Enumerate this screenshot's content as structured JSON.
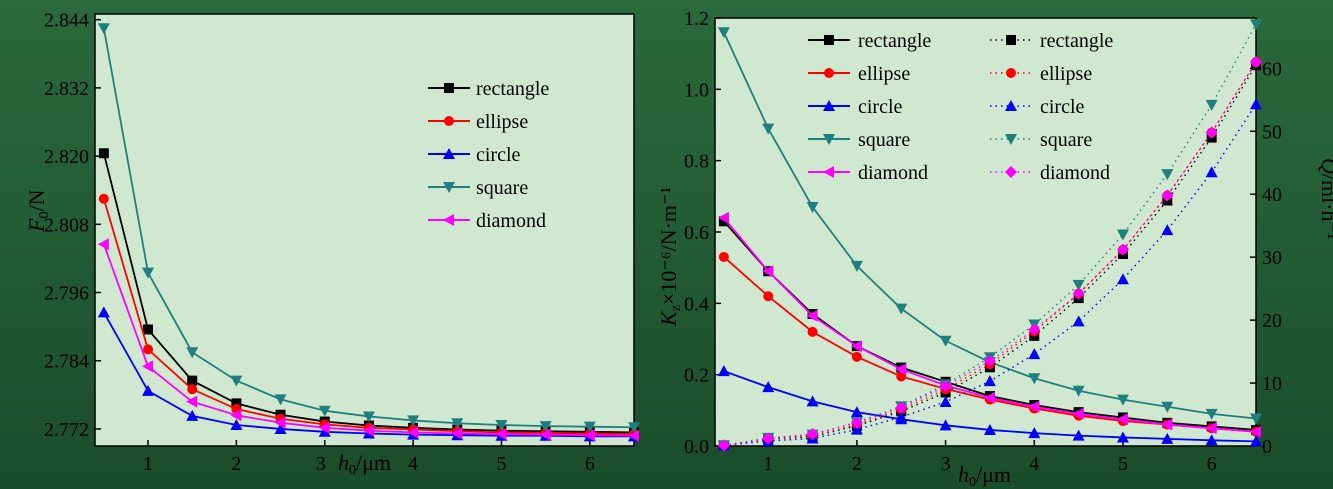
{
  "colors": {
    "background": "#cfe8cf",
    "rectangle": "#000000",
    "ellipse": "#ff0000",
    "circle": "#0000ff",
    "square": "#1f7f7f",
    "diamond": "#ff00ff"
  },
  "chart_data": [
    {
      "type": "line",
      "ylabel_main": "F",
      "ylabel_sub": "0",
      "ylabel_unit": "/N",
      "xlabel_main": "h",
      "xlabel_sub": "0",
      "xlabel_unit": "/μm",
      "xlim": [
        0.4,
        6.5
      ],
      "ylim": [
        2.769,
        2.845
      ],
      "xticks": [
        "1",
        "2",
        "3",
        "4",
        "5",
        "6"
      ],
      "yticks": [
        "2.772",
        "2.784",
        "2.796",
        "2.808",
        "2.820",
        "2.832",
        "2.844"
      ],
      "legend_position": "upper-right",
      "x": [
        0.5,
        1,
        1.5,
        2,
        2.5,
        3,
        3.5,
        4,
        4.5,
        5,
        5.5,
        6,
        6.5
      ],
      "series": [
        {
          "name": "rectangle",
          "marker": "square",
          "values": [
            2.8205,
            2.7895,
            2.7805,
            2.7765,
            2.7745,
            2.7733,
            2.7726,
            2.7722,
            2.7719,
            2.7717,
            2.7716,
            2.7715,
            2.7714
          ]
        },
        {
          "name": "ellipse",
          "marker": "circle",
          "values": [
            2.8125,
            2.786,
            2.779,
            2.7755,
            2.7738,
            2.7728,
            2.7722,
            2.7719,
            2.7716,
            2.7714,
            2.7713,
            2.7712,
            2.7711
          ]
        },
        {
          "name": "circle",
          "marker": "triangle-up",
          "values": [
            2.7925,
            2.7787,
            2.7743,
            2.7727,
            2.772,
            2.7715,
            2.7712,
            2.771,
            2.7709,
            2.7708,
            2.7708,
            2.7707,
            2.7707
          ]
        },
        {
          "name": "square",
          "marker": "triangle-down",
          "values": [
            2.8425,
            2.7995,
            2.7855,
            2.7805,
            2.7772,
            2.7752,
            2.7742,
            2.7735,
            2.773,
            2.7727,
            2.7725,
            2.7724,
            2.7723
          ]
        },
        {
          "name": "diamond",
          "marker": "triangle-left",
          "values": [
            2.8045,
            2.783,
            2.7768,
            2.7744,
            2.7731,
            2.7722,
            2.7717,
            2.7714,
            2.7712,
            2.7711,
            2.771,
            2.7709,
            2.7708
          ]
        }
      ]
    },
    {
      "type": "line",
      "ylabel_main": "K",
      "ylabel_sub": "z",
      "ylabel_unit": "×10⁻⁶/N·m⁻¹",
      "y2label_main": "Q",
      "y2label_unit": "/ml·h⁻¹",
      "xlabel_main": "h",
      "xlabel_sub": "0",
      "xlabel_unit": "/μm",
      "xlim": [
        0.4,
        6.5
      ],
      "ylim": [
        0,
        1.2
      ],
      "y2lim": [
        0,
        68
      ],
      "xticks": [
        "1",
        "2",
        "3",
        "4",
        "5",
        "6"
      ],
      "yticks": [
        "0.0",
        "0.2",
        "0.4",
        "0.6",
        "0.8",
        "1.0",
        "1.2"
      ],
      "y2ticks": [
        "0",
        "10",
        "20",
        "30",
        "40",
        "50",
        "60"
      ],
      "legend_position": "top",
      "x": [
        0.5,
        1,
        1.5,
        2,
        2.5,
        3,
        3.5,
        4,
        4.5,
        5,
        5.5,
        6,
        6.5
      ],
      "series": [
        {
          "name": "rectangle",
          "axis": "left",
          "marker": "square",
          "values": [
            0.63,
            0.49,
            0.37,
            0.28,
            0.22,
            0.18,
            0.14,
            0.115,
            0.095,
            0.08,
            0.065,
            0.055,
            0.045
          ]
        },
        {
          "name": "ellipse",
          "axis": "left",
          "marker": "circle",
          "values": [
            0.53,
            0.42,
            0.32,
            0.25,
            0.195,
            0.16,
            0.13,
            0.105,
            0.085,
            0.07,
            0.06,
            0.05,
            0.04
          ]
        },
        {
          "name": "circle",
          "axis": "left",
          "marker": "triangle-up",
          "values": [
            0.21,
            0.165,
            0.125,
            0.095,
            0.075,
            0.058,
            0.045,
            0.036,
            0.029,
            0.024,
            0.02,
            0.016,
            0.013
          ]
        },
        {
          "name": "square",
          "axis": "left",
          "marker": "triangle-down",
          "values": [
            1.16,
            0.89,
            0.67,
            0.505,
            0.385,
            0.295,
            0.235,
            0.19,
            0.155,
            0.13,
            0.11,
            0.09,
            0.077
          ]
        },
        {
          "name": "diamond",
          "axis": "left",
          "marker": "triangle-left",
          "values": [
            0.64,
            0.49,
            0.365,
            0.28,
            0.215,
            0.17,
            0.135,
            0.11,
            0.09,
            0.075,
            0.06,
            0.05,
            0.04
          ]
        },
        {
          "name": "rectangle",
          "axis": "right",
          "marker": "square",
          "values": [
            0.1,
            1.1,
            1.5,
            3.2,
            5.5,
            8.5,
            12.5,
            17.5,
            23.5,
            30.5,
            39,
            49,
            60.5
          ]
        },
        {
          "name": "ellipse",
          "axis": "right",
          "marker": "circle",
          "values": [
            0.1,
            1.2,
            1.6,
            3.4,
            5.8,
            9,
            13,
            18.2,
            24.2,
            31.2,
            39.8,
            49.8,
            61
          ]
        },
        {
          "name": "circle",
          "axis": "right",
          "marker": "triangle-up",
          "values": [
            0.1,
            0.8,
            1.2,
            2.6,
            4.6,
            7,
            10.3,
            14.6,
            19.8,
            26.5,
            34.3,
            43.5,
            54.3
          ]
        },
        {
          "name": "square",
          "axis": "right",
          "marker": "triangle-down",
          "values": [
            0.1,
            1.3,
            1.8,
            3.8,
            6.3,
            9.8,
            14.1,
            19.3,
            25.6,
            33.6,
            43.2,
            54.2,
            67
          ]
        },
        {
          "name": "diamond",
          "axis": "right",
          "marker": "diamond",
          "values": [
            0.1,
            1.2,
            1.9,
            3.7,
            6.1,
            9.5,
            13.5,
            18.5,
            24.2,
            31.2,
            39.8,
            49.8,
            61
          ]
        }
      ]
    }
  ]
}
